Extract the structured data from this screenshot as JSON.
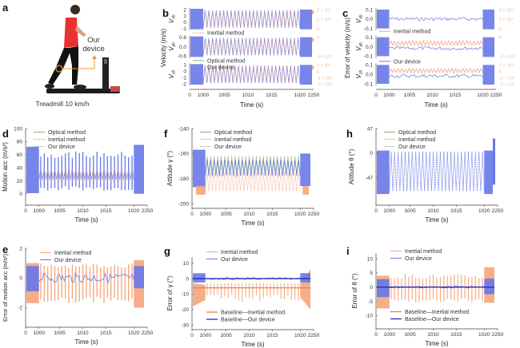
{
  "colors": {
    "our_device": "#6878e8",
    "inertial": "#f4a57a",
    "optical": "#8fae7a",
    "baseline_inertial": "#f08040",
    "baseline_device": "#2a2ab8",
    "axis": "#444444"
  },
  "panel_a": {
    "letter": "a",
    "callout": [
      "Our",
      "device"
    ],
    "caption": "Treadmill 10 km/h"
  },
  "chart_data": [
    {
      "id": "b",
      "letter": "b",
      "type": "line",
      "ylabel": "Velocity (m/s)",
      "xlabel": "Time (s)",
      "xticks": [
        "0",
        "1000",
        "1005",
        "1010",
        "1015",
        "1020",
        "2250"
      ],
      "legend": [
        "Inertial method",
        "Optical method",
        "Our device"
      ],
      "subplots": [
        {
          "label": "V",
          "sub": "xb",
          "yticks": [
            "2",
            "1",
            "0",
            "-1"
          ],
          "ylim": [
            -1.2,
            2.4
          ],
          "right_ticks": [
            "2 × 10⁴",
            "1 × 10⁴",
            "0"
          ],
          "amp": 1.3,
          "center": 0.6
        },
        {
          "label": "V",
          "sub": "yb",
          "yticks": [
            "0.6",
            "0.0",
            "-0.6"
          ],
          "ylim": [
            -0.8,
            0.8
          ],
          "right_ticks": [
            "0",
            "-4 × 10⁴"
          ],
          "amp": 0.55,
          "center": 0.05
        },
        {
          "label": "V",
          "sub": "zb",
          "yticks": [
            "1",
            "0",
            "-1",
            "-2"
          ],
          "ylim": [
            -2.2,
            1.4
          ],
          "right_ticks": [
            "1 × 10⁴",
            "0",
            "-1 × 10⁴",
            "-2 × 10⁴"
          ],
          "amp": 1.3,
          "center": -0.4
        }
      ]
    },
    {
      "id": "c",
      "letter": "c",
      "type": "line",
      "ylabel": "Error of velocity (m/s)",
      "xlabel": "Time (s)",
      "xticks": [
        "0",
        "1000",
        "1005",
        "1010",
        "1015",
        "1020",
        "2250"
      ],
      "legend": [
        "Inertial method",
        "Our device"
      ],
      "subplots": [
        {
          "label": "V",
          "sub": "xb",
          "yticks": [
            "0.1",
            "0.0",
            "-0.1"
          ],
          "ylim": [
            -0.14,
            0.14
          ],
          "right_ticks": [
            "2 × 10⁴",
            "1 × 10⁴",
            "0"
          ]
        },
        {
          "label": "V",
          "sub": "yb",
          "yticks": [
            "0.1",
            "0.0",
            "-0.1"
          ],
          "ylim": [
            -0.14,
            0.14
          ],
          "right_ticks": [
            "0",
            "-4 × 10⁴"
          ]
        },
        {
          "label": "V",
          "sub": "zb",
          "yticks": [
            "0.1",
            "0.0",
            "-0.1"
          ],
          "ylim": [
            -0.14,
            0.14
          ],
          "right_ticks": [
            "1 × 10⁴",
            "0",
            "-1 × 10⁴",
            "-2 × 10⁴"
          ]
        }
      ]
    },
    {
      "id": "d",
      "letter": "d",
      "type": "line",
      "ylabel": "Motion acc (m/s²)",
      "xlabel": "Time (s)",
      "xticks": [
        "0",
        "1000",
        "1005",
        "1010",
        "1015",
        "1020",
        "2250"
      ],
      "yticks": [
        "100",
        "80",
        "60",
        "40",
        "20",
        "0"
      ],
      "ylim": [
        -10,
        100
      ],
      "legend": [
        "Optical method",
        "Inertial method",
        "Our device"
      ],
      "peaks_range": [
        55,
        65
      ],
      "troughs_range": [
        5,
        12
      ],
      "dense_range": [
        0,
        75
      ]
    },
    {
      "id": "f",
      "letter": "f",
      "type": "line",
      "ylabel": "Attitude γ (°)",
      "xlabel": "Time (s)",
      "xticks": [
        "0",
        "1000",
        "1005",
        "1010",
        "1015",
        "1020",
        "2250"
      ],
      "yticks": [
        "-140",
        "-160",
        "-180",
        "-200"
      ],
      "ylim": [
        -200,
        -140
      ],
      "legend": [
        "Optical method",
        "Inertial method",
        "Our device"
      ]
    },
    {
      "id": "h",
      "letter": "h",
      "type": "line",
      "ylabel": "Attitude θ (°)",
      "xlabel": "Time (s)",
      "xticks": [
        "0",
        "1000",
        "1005",
        "1010",
        "1015",
        "1020",
        "2250"
      ],
      "yticks": [
        "47",
        "0",
        "-47"
      ],
      "ylim": [
        -90,
        47
      ],
      "legend": [
        "Optical method",
        "Inertial method",
        "Our device"
      ]
    },
    {
      "id": "e",
      "letter": "e",
      "type": "line",
      "ylabel": "Error of motion acc (m/s²)",
      "xlabel": "Time (s)",
      "xticks": [
        "0",
        "1000",
        "1005",
        "1010",
        "1015",
        "1020",
        "2250"
      ],
      "yticks": [
        "2",
        "0",
        "-2"
      ],
      "ylim": [
        -3,
        2
      ],
      "legend": [
        "Inertial method",
        "Our device"
      ]
    },
    {
      "id": "g",
      "letter": "g",
      "type": "line",
      "ylabel": "Error of γ (°)",
      "xlabel": "Time (s)",
      "xticks": [
        "0",
        "1000",
        "1005",
        "1010",
        "1015",
        "1020",
        "2250"
      ],
      "yticks": [
        "10",
        "0",
        "-10",
        "-20",
        "-30"
      ],
      "ylim": [
        -30,
        14
      ],
      "legend": [
        "Inertial method",
        "Our device"
      ],
      "legend2": [
        "Baseline—Inertial method",
        "Baseline—Our device"
      ]
    },
    {
      "id": "i",
      "letter": "i",
      "type": "line",
      "ylabel": "Error of θ (°)",
      "xlabel": "Time (s)",
      "xticks": [
        "0",
        "1000",
        "1005",
        "1010",
        "1015",
        "1020",
        "2250"
      ],
      "yticks": [
        "10",
        "5",
        "0",
        "-5",
        "-10"
      ],
      "ylim": [
        -13,
        12
      ],
      "legend": [
        "Inertial method",
        "Our device"
      ],
      "legend2": [
        "Baseline—Inertial method",
        "Baseline—Our device"
      ]
    }
  ]
}
